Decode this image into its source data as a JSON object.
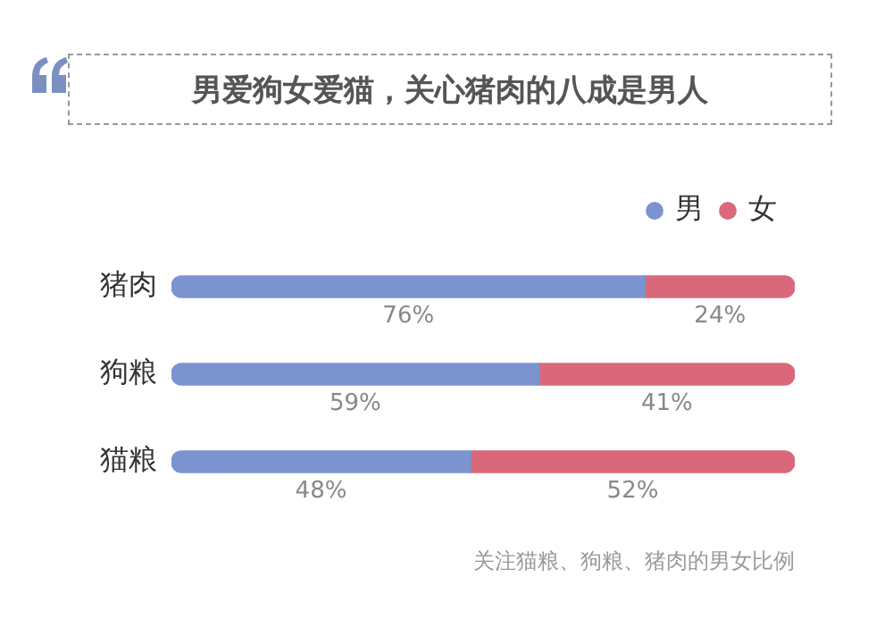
{
  "chart_data": {
    "type": "bar",
    "orientation": "horizontal",
    "stacked": true,
    "title": "男爱狗女爱猫，关心猪肉的八成是男人",
    "categories": [
      "猪肉",
      "狗粮",
      "猫粮"
    ],
    "series": [
      {
        "name": "男",
        "color": "#7b93cf",
        "values": [
          76,
          59,
          48
        ],
        "value_labels": [
          "76%",
          "59%",
          "48%"
        ]
      },
      {
        "name": "女",
        "color": "#d9687a",
        "values": [
          24,
          41,
          52
        ],
        "value_labels": [
          "24%",
          "41%",
          "52%"
        ]
      }
    ],
    "xlim": [
      0,
      100
    ],
    "grid": false,
    "legend": "top right",
    "tick_labels": "y",
    "annotations": [
      "关注猫粮、狗粮、猪肉的男女比例"
    ]
  }
}
